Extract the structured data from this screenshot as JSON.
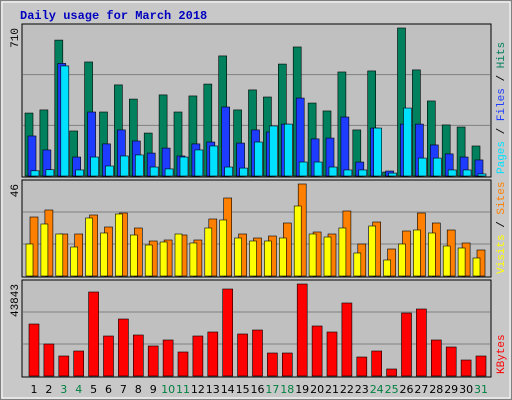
{
  "chart_data": [
    {
      "type": "bar",
      "title": "Daily usage for March 2018",
      "categories": [
        "1",
        "2",
        "3",
        "4",
        "5",
        "6",
        "7",
        "8",
        "9",
        "10",
        "11",
        "12",
        "13",
        "14",
        "15",
        "16",
        "17",
        "18",
        "19",
        "20",
        "21",
        "22",
        "23",
        "24",
        "25",
        "26",
        "27",
        "28",
        "29",
        "30",
        "31"
      ],
      "category_colors": [
        "#000000",
        "#000000",
        "#008040",
        "#008040",
        "#000000",
        "#000000",
        "#000000",
        "#000000",
        "#000000",
        "#008040",
        "#008040",
        "#000000",
        "#000000",
        "#000000",
        "#000000",
        "#000000",
        "#008040",
        "#008040",
        "#000000",
        "#000000",
        "#000000",
        "#000000",
        "#000000",
        "#008040",
        "#008040",
        "#000000",
        "#000000",
        "#000000",
        "#000000",
        "#000000",
        "#008040"
      ],
      "ylim": [
        0,
        710
      ],
      "yticks": [
        710
      ],
      "separator": " / ",
      "series": [
        {
          "name": "Hits",
          "color": "#00805c",
          "values": [
            302,
            317,
            652,
            216,
            547,
            307,
            437,
            369,
            206,
            389,
            307,
            384,
            441,
            576,
            317,
            413,
            379,
            537,
            619,
            350,
            312,
            499,
            221,
            504,
            19,
            710,
            509,
            360,
            245,
            235,
            144
          ]
        },
        {
          "name": "Files",
          "color": "#1e3cff",
          "values": [
            192,
            125,
            540,
            91,
            307,
            154,
            221,
            168,
            110,
            134,
            96,
            154,
            163,
            331,
            158,
            221,
            211,
            249,
            374,
            178,
            182,
            283,
            67,
            230,
            24,
            249,
            249,
            149,
            106,
            91,
            77
          ]
        },
        {
          "name": "Pages",
          "color": "#00e0ff",
          "values": [
            25,
            30,
            528,
            29,
            91,
            48,
            96,
            101,
            43,
            34,
            91,
            125,
            144,
            43,
            38,
            163,
            240,
            249,
            67,
            67,
            43,
            29,
            29,
            230,
            14,
            326,
            86,
            86,
            29,
            29,
            10
          ]
        }
      ]
    },
    {
      "type": "bar",
      "ylim": [
        0,
        46
      ],
      "yticks": [
        46
      ],
      "separator": " / ",
      "series": [
        {
          "name": "Sites",
          "color": "#ff8000",
          "values": [
            29.5,
            33,
            21,
            21,
            30.5,
            24.5,
            31.5,
            24,
            17.5,
            18,
            20.5,
            18,
            28.5,
            39,
            21,
            19,
            20,
            26.5,
            46,
            22,
            21,
            32.5,
            16,
            27,
            13.5,
            22.5,
            31.5,
            26.5,
            23,
            16.5,
            13
          ]
        },
        {
          "name": "Visits",
          "color": "#ffff00",
          "values": [
            16,
            26,
            21,
            14.5,
            29,
            21.5,
            31,
            20.5,
            15.5,
            17,
            21,
            16.5,
            24,
            28,
            19,
            17.5,
            17.5,
            19,
            35,
            21,
            19.5,
            24,
            11.5,
            25,
            8,
            16,
            23,
            21.5,
            15,
            14,
            9
          ]
        }
      ]
    },
    {
      "type": "bar",
      "ylim": [
        0,
        43843
      ],
      "yticks": [
        43843
      ],
      "series": [
        {
          "name": "KBytes",
          "color": "#ff0000",
          "values": [
            24780,
            15250,
            9530,
            11910,
            40030,
            19060,
            27160,
            19540,
            14300,
            17160,
            11440,
            19060,
            20970,
            41460,
            20020,
            21920,
            10960,
            10960,
            43843,
            23830,
            20970,
            34790,
            9050,
            11910,
            3340,
            30020,
            31930,
            17160,
            13820,
            7620,
            9530
          ]
        }
      ]
    }
  ]
}
